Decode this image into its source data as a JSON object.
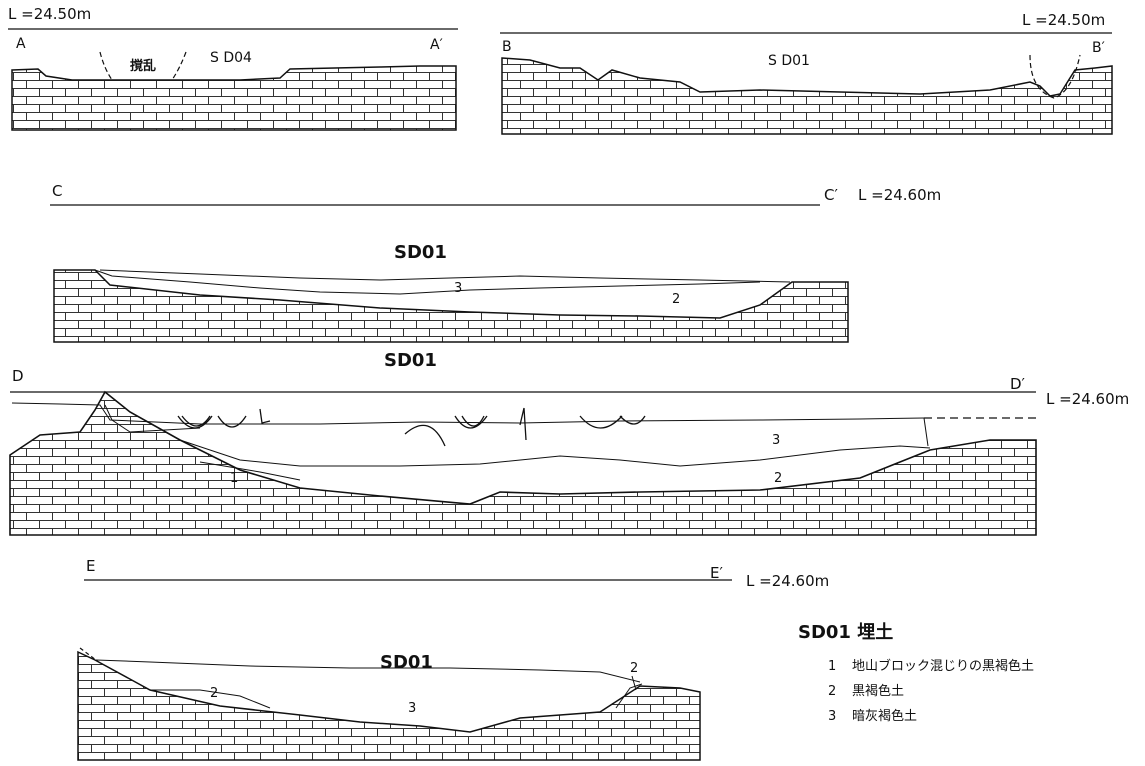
{
  "sections": [
    {
      "id": "A",
      "start_label": "A",
      "end_label": "A′",
      "level_label": "L =24.50m",
      "feature_label": "S D04",
      "disturbance_label": "撹乱"
    },
    {
      "id": "B",
      "start_label": "B",
      "end_label": "B′",
      "level_label": "L =24.50m",
      "feature_label": "S D01"
    },
    {
      "id": "C",
      "start_label": "C",
      "end_label": "C′",
      "level_label": "L =24.60m",
      "feature_label": "SD01",
      "layers": [
        "3",
        "2"
      ]
    },
    {
      "id": "D",
      "start_label": "D",
      "end_label": "D′",
      "level_label": "L =24.60m",
      "feature_label": "SD01",
      "layers": [
        "1",
        "3",
        "2"
      ]
    },
    {
      "id": "E",
      "start_label": "E",
      "end_label": "E′",
      "level_label": "L =24.60m",
      "feature_label": "SD01",
      "layers": [
        "2",
        "3",
        "2"
      ]
    }
  ],
  "legend": {
    "title": "SD01 埋土",
    "items": [
      {
        "num": "1",
        "text": "地山ブロック混じりの黒褐色土"
      },
      {
        "num": "2",
        "text": "黒褐色土"
      },
      {
        "num": "3",
        "text": "暗灰褐色土"
      }
    ]
  }
}
